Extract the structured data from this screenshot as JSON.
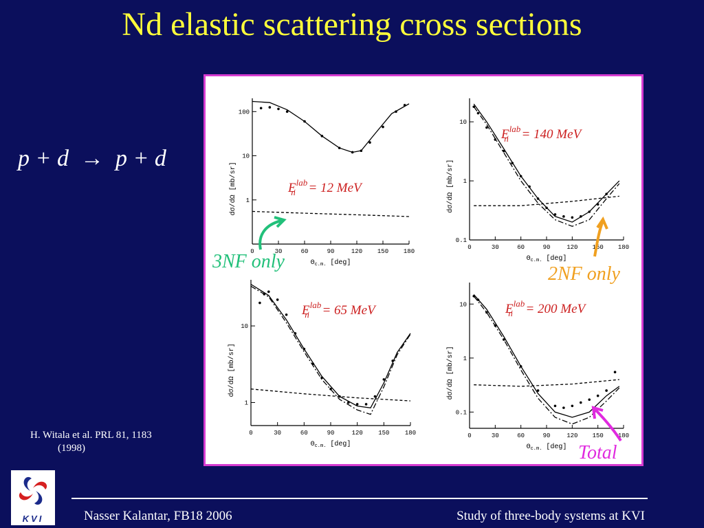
{
  "slide": {
    "title": "Nd elastic scattering cross sections",
    "reaction": "p + d  →  p + d",
    "citation_line1": "H. Witala et al. PRL 81, 1183",
    "citation_line2": "(1998)",
    "footer_left": "Nasser Kalantar, FB18 2006",
    "footer_right": "Study of three-body systems at KVI",
    "logo_text": "KVI",
    "logo_icon": "kvi-swirl-logo-icon"
  },
  "annotations": {
    "three_nf": "3NF only",
    "two_nf": "2NF only",
    "total": "Total"
  },
  "colors": {
    "background": "#0b0f5c",
    "title": "#ffff3a",
    "panel_border": "#d63bd0",
    "energy_label": "#cc1f1f",
    "three_nf": "#22c07a",
    "two_nf": "#f0a020",
    "total": "#e02adf"
  },
  "chart_data": [
    {
      "type": "line",
      "energy_label": "E",
      "energy_sub": "n",
      "energy_sup": "lab",
      "energy_value": " = 12 MeV",
      "xlabel": "Θ",
      "xlabel_sub": "c.m.",
      "xlabel_unit": " [deg]",
      "ylabel": "dσ/dΩ [mb/sr]",
      "xlim": [
        0,
        180
      ],
      "ylim_log": [
        0.1,
        200
      ],
      "xticks": [
        "0",
        "30",
        "60",
        "90",
        "120",
        "150",
        "180"
      ],
      "yticks": [
        {
          "label": "100",
          "value": 100
        },
        {
          "label": "10",
          "value": 10
        },
        {
          "label": "1",
          "value": 1
        }
      ],
      "series": [
        {
          "style": "solid",
          "x": [
            0,
            20,
            40,
            60,
            80,
            100,
            115,
            125,
            140,
            160,
            180
          ],
          "y": [
            170,
            160,
            110,
            60,
            28,
            15,
            12,
            13,
            30,
            90,
            150
          ]
        },
        {
          "style": "dashed",
          "x": [
            0,
            60,
            120,
            180
          ],
          "y": [
            0.55,
            0.5,
            0.46,
            0.42
          ]
        }
      ],
      "points": {
        "x": [
          10,
          20,
          30,
          40,
          60,
          80,
          100,
          115,
          125,
          135,
          150,
          165,
          175
        ],
        "y": [
          120,
          125,
          115,
          100,
          60,
          28,
          15,
          12,
          13,
          20,
          45,
          100,
          140
        ]
      }
    },
    {
      "type": "line",
      "energy_label": "E",
      "energy_sub": "n",
      "energy_sup": "lab",
      "energy_value": " = 140 MeV",
      "xlabel": "Θ",
      "xlabel_sub": "c.m.",
      "xlabel_unit": " [deg]",
      "ylabel": "dσ/dΩ [mb/sr]",
      "xlim": [
        0,
        180
      ],
      "ylim_log": [
        0.1,
        25
      ],
      "xticks": [
        "0",
        "30",
        "60",
        "90",
        "120",
        "150",
        "180"
      ],
      "yticks": [
        {
          "label": "10",
          "value": 10
        },
        {
          "label": "1",
          "value": 1
        },
        {
          "label": "0.1",
          "value": 0.1
        }
      ],
      "series": [
        {
          "style": "solid",
          "x": [
            5,
            20,
            40,
            60,
            80,
            100,
            120,
            140,
            160,
            175
          ],
          "y": [
            20,
            10,
            3.5,
            1.2,
            0.5,
            0.25,
            0.2,
            0.3,
            0.6,
            1.0
          ]
        },
        {
          "style": "dashdot",
          "x": [
            5,
            20,
            40,
            60,
            80,
            100,
            120,
            140,
            160,
            175
          ],
          "y": [
            18,
            9,
            3.0,
            1.0,
            0.42,
            0.22,
            0.17,
            0.22,
            0.5,
            0.9
          ]
        },
        {
          "style": "dashed",
          "x": [
            5,
            60,
            120,
            175
          ],
          "y": [
            0.38,
            0.38,
            0.45,
            0.55
          ]
        }
      ],
      "points": {
        "x": [
          5,
          10,
          20,
          30,
          40,
          50,
          60,
          70,
          80,
          90,
          100,
          110,
          120,
          130,
          140,
          150,
          160
        ],
        "y": [
          18,
          14,
          8,
          5,
          3.2,
          2.0,
          1.2,
          0.8,
          0.5,
          0.35,
          0.27,
          0.25,
          0.24,
          0.25,
          0.3,
          0.4,
          0.6
        ]
      }
    },
    {
      "type": "line",
      "energy_label": "E",
      "energy_sub": "n",
      "energy_sup": "lab",
      "energy_value": " = 65 MeV",
      "xlabel": "Θ",
      "xlabel_sub": "c.m.",
      "xlabel_unit": " [deg]",
      "ylabel": "dσ/dΩ [mb/sr]",
      "xlim": [
        0,
        180
      ],
      "ylim_log": [
        0.5,
        40
      ],
      "xticks": [
        "0",
        "30",
        "60",
        "90",
        "120",
        "150",
        "180"
      ],
      "yticks": [
        {
          "label": "10",
          "value": 10
        },
        {
          "label": "1",
          "value": 1
        }
      ],
      "series": [
        {
          "style": "solid",
          "x": [
            0,
            20,
            40,
            60,
            80,
            100,
            120,
            135,
            150,
            165,
            180
          ],
          "y": [
            35,
            25,
            12,
            5,
            2.2,
            1.2,
            0.9,
            0.85,
            1.8,
            4.5,
            8
          ]
        },
        {
          "style": "dashdot",
          "x": [
            0,
            20,
            40,
            60,
            80,
            100,
            120,
            135,
            150,
            165,
            180
          ],
          "y": [
            33,
            24,
            11,
            4.6,
            2.0,
            1.1,
            0.8,
            0.7,
            1.6,
            4.2,
            7.8
          ]
        },
        {
          "style": "dashed",
          "x": [
            0,
            60,
            120,
            180
          ],
          "y": [
            1.5,
            1.3,
            1.15,
            1.05
          ]
        }
      ],
      "points": {
        "x": [
          10,
          15,
          20,
          30,
          40,
          50,
          60,
          70,
          80,
          90,
          100,
          110,
          120,
          130,
          140,
          150,
          160
        ],
        "y": [
          20,
          26,
          28,
          22,
          14,
          8,
          5,
          3.2,
          2.1,
          1.5,
          1.2,
          1.0,
          0.95,
          0.95,
          1.2,
          2.0,
          3.5
        ]
      }
    },
    {
      "type": "line",
      "energy_label": "E",
      "energy_sub": "n",
      "energy_sup": "lab",
      "energy_value": " = 200 MeV",
      "xlabel": "Θ",
      "xlabel_sub": "c.m.",
      "xlabel_unit": " [deg]",
      "ylabel": "dσ/dΩ [mb/sr]",
      "xlim": [
        0,
        180
      ],
      "ylim_log": [
        0.05,
        25
      ],
      "xticks": [
        "0",
        "30",
        "60",
        "90",
        "120",
        "150",
        "180"
      ],
      "yticks": [
        {
          "label": "10",
          "value": 10
        },
        {
          "label": "1",
          "value": 1
        },
        {
          "label": "0.1",
          "value": 0.1
        }
      ],
      "series": [
        {
          "style": "solid",
          "x": [
            5,
            20,
            40,
            60,
            80,
            100,
            120,
            140,
            160,
            175
          ],
          "y": [
            15,
            8,
            2.5,
            0.7,
            0.22,
            0.1,
            0.08,
            0.1,
            0.2,
            0.3
          ]
        },
        {
          "style": "dashdot",
          "x": [
            5,
            20,
            40,
            60,
            80,
            100,
            120,
            140,
            160,
            175
          ],
          "y": [
            14,
            7,
            2.2,
            0.6,
            0.18,
            0.08,
            0.06,
            0.08,
            0.16,
            0.28
          ]
        },
        {
          "style": "dashed",
          "x": [
            5,
            60,
            120,
            175
          ],
          "y": [
            0.32,
            0.3,
            0.33,
            0.4
          ]
        }
      ],
      "points": {
        "x": [
          5,
          10,
          20,
          30,
          40,
          60,
          80,
          100,
          110,
          120,
          130,
          140,
          150,
          160,
          170
        ],
        "y": [
          14,
          12,
          7,
          4,
          2.2,
          0.7,
          0.25,
          0.13,
          0.12,
          0.13,
          0.15,
          0.17,
          0.2,
          0.25,
          0.55
        ]
      }
    }
  ]
}
